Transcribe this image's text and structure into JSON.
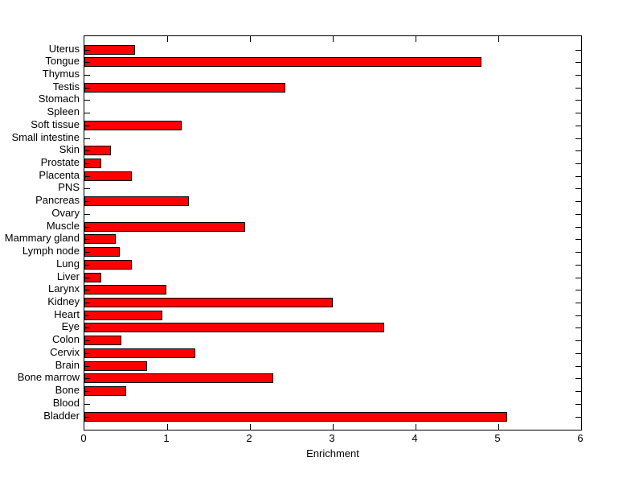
{
  "figure": {
    "background": "#ffffff"
  },
  "chart_data": {
    "type": "bar",
    "orientation": "horizontal",
    "title": "",
    "xlabel": "Enrichment",
    "ylabel": "",
    "xlim": [
      0,
      6
    ],
    "xticks": [
      "0",
      "1",
      "2",
      "3",
      "4",
      "5",
      "6"
    ],
    "grid": false,
    "legend": null,
    "category_order": "top-to-bottom",
    "categories": [
      "Uterus",
      "Tongue",
      "Thymus",
      "Testis",
      "Stomach",
      "Spleen",
      "Soft tissue",
      "Small intestine",
      "Skin",
      "Prostate",
      "Placenta",
      "PNS",
      "Pancreas",
      "Ovary",
      "Muscle",
      "Mammary gland",
      "Lymph node",
      "Lung",
      "Liver",
      "Larynx",
      "Kidney",
      "Heart",
      "Eye",
      "Colon",
      "Cervix",
      "Brain",
      "Bone marrow",
      "Bone",
      "Blood",
      "Bladder"
    ],
    "values": [
      0.61,
      4.8,
      0,
      2.43,
      0,
      0,
      1.17,
      0,
      0.32,
      0.2,
      0.57,
      0,
      1.26,
      0,
      1.94,
      0.38,
      0.43,
      0.57,
      0.2,
      0.99,
      3.0,
      0.94,
      3.62,
      0.45,
      1.34,
      0.76,
      2.28,
      0.5,
      0,
      5.11
    ],
    "bar_color": "#ff0000",
    "bar_edge_color": "#000000",
    "axis_color": "#000000",
    "text_color": "#000000"
  }
}
